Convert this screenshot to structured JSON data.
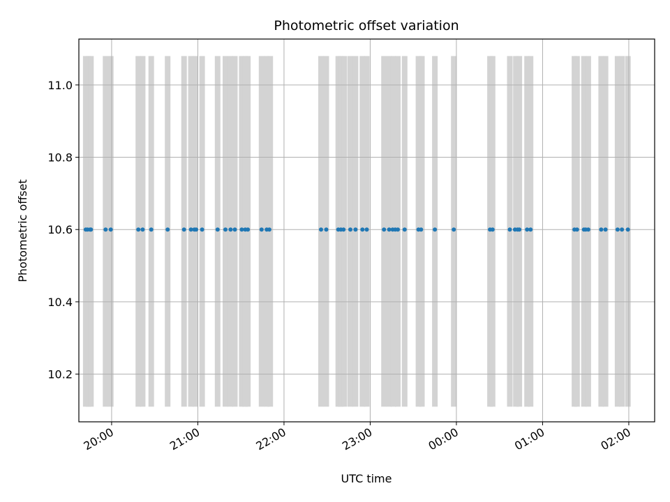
{
  "chart_data": {
    "type": "scatter",
    "title": "Photometric offset variation",
    "xlabel": "UTC time",
    "ylabel": "Photometric offset",
    "x_ticks": [
      {
        "hours": 20,
        "label": "20:00"
      },
      {
        "hours": 21,
        "label": "21:00"
      },
      {
        "hours": 22,
        "label": "22:00"
      },
      {
        "hours": 23,
        "label": "23:00"
      },
      {
        "hours": 24,
        "label": "00:00"
      },
      {
        "hours": 25,
        "label": "01:00"
      },
      {
        "hours": 26,
        "label": "02:00"
      }
    ],
    "y_ticks": [
      {
        "value": 10.2,
        "label": "10.2"
      },
      {
        "value": 10.4,
        "label": "10.4"
      },
      {
        "value": 10.6,
        "label": "10.6"
      },
      {
        "value": 10.8,
        "label": "10.8"
      },
      {
        "value": 11.0,
        "label": "11.0"
      }
    ],
    "xlim_hours": [
      19.62,
      26.3
    ],
    "ylim": [
      10.068,
      11.127
    ],
    "grid": true,
    "span_range": [
      10.11,
      11.08
    ],
    "span_x_hours": [
      19.7,
      19.73,
      19.76,
      19.93,
      19.99,
      20.31,
      20.36,
      20.46,
      20.65,
      20.84,
      20.92,
      20.97,
      21.05,
      21.23,
      21.32,
      21.38,
      21.43,
      21.51,
      21.55,
      21.58,
      21.74,
      21.8,
      21.84,
      22.43,
      22.49,
      22.63,
      22.66,
      22.7,
      22.77,
      22.83,
      22.91,
      22.96,
      23.16,
      23.22,
      23.27,
      23.32,
      23.4,
      23.56,
      23.6,
      23.75,
      23.97,
      24.39,
      24.42,
      24.62,
      24.69,
      24.73,
      24.82,
      24.86,
      25.37,
      25.4,
      25.48,
      25.53,
      25.68,
      25.73,
      25.87,
      25.92,
      25.99
    ],
    "series": [
      {
        "name": "Photometric offset",
        "color": "#1f77b4",
        "x_hours": [
          19.7,
          19.72,
          19.75,
          19.76,
          19.93,
          19.99,
          20.31,
          20.36,
          20.46,
          20.65,
          20.84,
          20.92,
          20.96,
          20.98,
          21.05,
          21.23,
          21.32,
          21.38,
          21.43,
          21.51,
          21.55,
          21.58,
          21.74,
          21.8,
          21.83,
          22.43,
          22.49,
          22.63,
          22.66,
          22.69,
          22.77,
          22.83,
          22.91,
          22.96,
          23.16,
          23.22,
          23.26,
          23.29,
          23.32,
          23.4,
          23.56,
          23.59,
          23.75,
          23.97,
          24.39,
          24.42,
          24.62,
          24.68,
          24.71,
          24.73,
          24.82,
          24.86,
          25.37,
          25.4,
          25.48,
          25.5,
          25.53,
          25.68,
          25.73,
          25.87,
          25.92,
          25.99
        ],
        "y_value": 10.6
      }
    ]
  }
}
